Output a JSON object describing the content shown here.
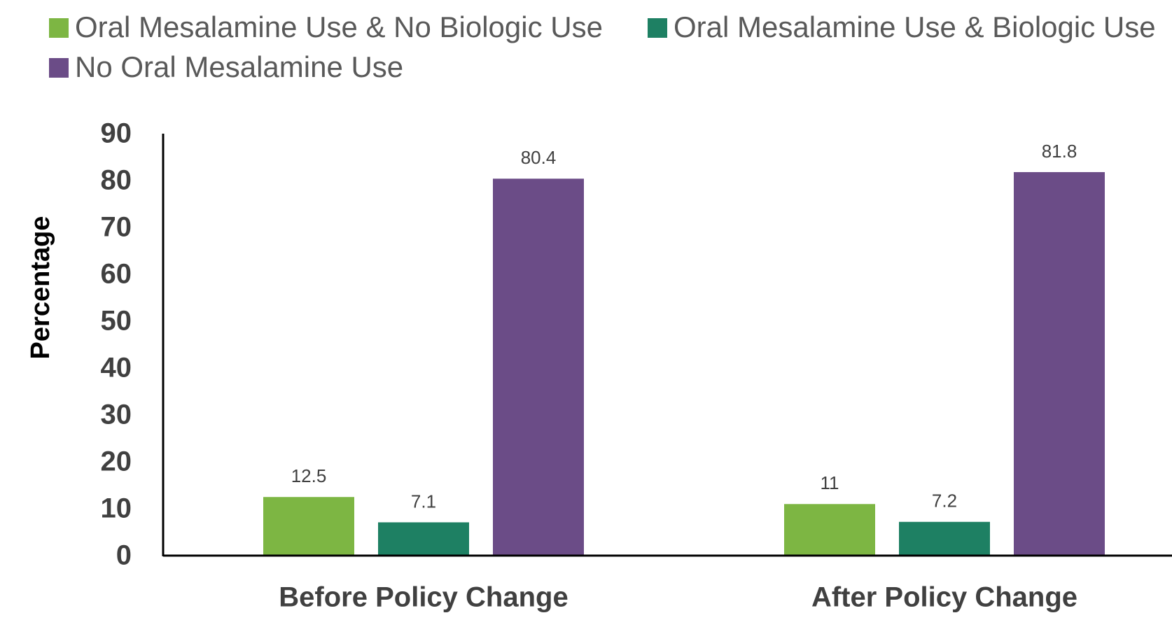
{
  "chart_data": {
    "type": "bar",
    "y_label": "Percentage",
    "categories": [
      "Before Policy Change",
      "After Policy Change"
    ],
    "series": [
      {
        "name": "Oral Mesalamine Use & No Biologic Use",
        "color": "#7db643",
        "values": [
          12.5,
          11
        ]
      },
      {
        "name": "Oral Mesalamine Use & Biologic Use",
        "color": "#1e8063",
        "values": [
          7.1,
          7.2
        ]
      },
      {
        "name": "No Oral Mesalamine Use",
        "color": "#6b4c87",
        "values": [
          80.4,
          81.8
        ]
      }
    ],
    "ylim": [
      0,
      90
    ],
    "yticks": [
      0,
      10,
      20,
      30,
      40,
      50,
      60,
      70,
      80,
      90
    ],
    "grid": false,
    "legend": "top"
  }
}
